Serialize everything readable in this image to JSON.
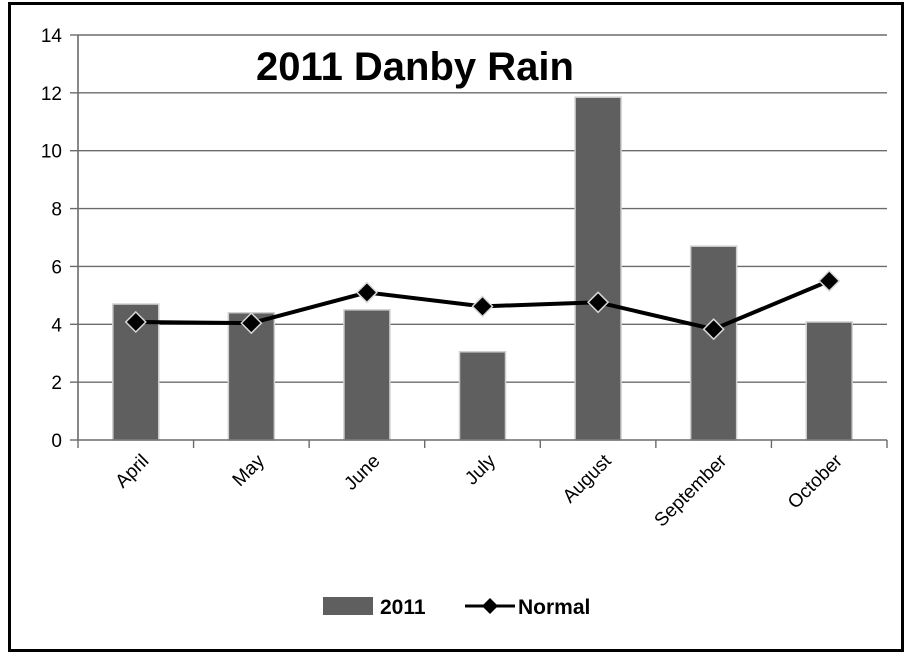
{
  "chart_data": {
    "type": "bar",
    "title": "2011 Danby Rain",
    "xlabel": "",
    "ylabel": "",
    "categories": [
      "April",
      "May",
      "June",
      "July",
      "August",
      "September",
      "October"
    ],
    "ylim": [
      0,
      14
    ],
    "yticks": [
      0,
      2,
      4,
      6,
      8,
      10,
      12,
      14
    ],
    "grid": true,
    "legend_position": "bottom",
    "series": [
      {
        "name": "2011",
        "kind": "bar",
        "color": "#5f5f5f",
        "values": [
          4.7,
          4.4,
          4.5,
          3.05,
          11.85,
          6.7,
          4.08
        ]
      },
      {
        "name": "Normal",
        "kind": "line",
        "color": "#000000",
        "values": [
          4.08,
          4.04,
          5.1,
          4.62,
          4.76,
          3.83,
          5.5
        ]
      }
    ]
  }
}
